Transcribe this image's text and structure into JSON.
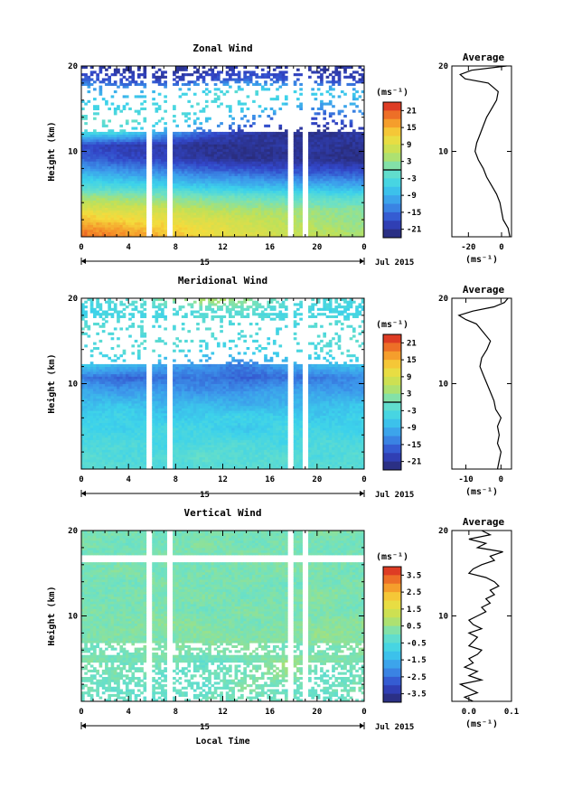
{
  "chart_data": [
    {
      "type": "heatmap",
      "title": "Zonal Wind",
      "xlabel": "",
      "ylabel": "Height (km)",
      "xlim": [
        0,
        24
      ],
      "ylim": [
        0,
        20
      ],
      "x_ticks": [
        "0",
        "4",
        "8",
        "12",
        "16",
        "20",
        "0"
      ],
      "y_ticks": [
        "10",
        "20"
      ],
      "date_ticks": [
        "15"
      ],
      "date_label": "Jul 2015",
      "colorbar": {
        "unit": "(ms⁻¹)",
        "ticks": [
          "21",
          "15",
          "9",
          "3",
          "-3",
          "-9",
          "-15",
          "-21"
        ],
        "min": -24,
        "max": 24,
        "line_value": 0
      },
      "average": {
        "title": "Average",
        "xlabel": "(ms⁻¹)",
        "x_ticks": [
          "-20",
          "0"
        ],
        "y_ticks": [
          "10",
          "20"
        ],
        "xlim": [
          -30,
          6
        ],
        "profile": [
          [
            0,
            5
          ],
          [
            1,
            4
          ],
          [
            2,
            1
          ],
          [
            3,
            0
          ],
          [
            4,
            -1
          ],
          [
            5,
            -3
          ],
          [
            6,
            -6
          ],
          [
            7,
            -9
          ],
          [
            8,
            -11
          ],
          [
            9,
            -14
          ],
          [
            10,
            -16
          ],
          [
            11,
            -15
          ],
          [
            12,
            -13
          ],
          [
            13,
            -11
          ],
          [
            14,
            -9
          ],
          [
            15,
            -6
          ],
          [
            16,
            -3
          ],
          [
            17,
            -2
          ],
          [
            18,
            -8
          ],
          [
            18.5,
            -22
          ],
          [
            19,
            -25
          ],
          [
            19.5,
            -18
          ],
          [
            20,
            3
          ]
        ]
      },
      "field": [
        [
          20,
          18,
          15,
          12,
          10,
          8,
          6,
          4
        ],
        [
          16,
          14,
          12,
          10,
          8,
          6,
          4,
          3
        ],
        [
          10,
          9,
          8,
          6,
          5,
          4,
          3,
          2
        ],
        [
          4,
          3,
          2,
          1,
          0,
          -1,
          -2,
          -2
        ],
        [
          -4,
          -5,
          -6,
          -8,
          -9,
          -10,
          -10,
          -11
        ],
        [
          -10,
          -12,
          -13,
          -15,
          -16,
          -17,
          -17,
          -18
        ],
        [
          -16,
          -18,
          -19,
          -21,
          -22,
          -22,
          -22,
          -23
        ],
        [
          -18,
          -20,
          -20,
          -22,
          -22,
          -21,
          -21,
          -22
        ],
        [
          -3,
          -4,
          -10,
          -16,
          -20,
          -22,
          -22,
          -20
        ],
        [
          -2,
          -1,
          -3,
          -6,
          -12,
          -16,
          -18,
          -15
        ],
        [
          -5,
          -6,
          -4,
          -3,
          -5,
          -8,
          -12,
          -10
        ],
        [
          -8,
          -10,
          -6,
          -4,
          -2,
          -4,
          -6,
          -8
        ],
        [
          -16,
          -18,
          -20,
          -18,
          -16,
          -17,
          -19,
          -20
        ],
        [
          -20,
          -22,
          -21,
          -22,
          -20,
          -21,
          -22,
          -20
        ]
      ]
    },
    {
      "type": "heatmap",
      "title": "Meridional Wind",
      "xlabel": "",
      "ylabel": "Height (km)",
      "xlim": [
        0,
        24
      ],
      "ylim": [
        0,
        20
      ],
      "x_ticks": [
        "0",
        "4",
        "8",
        "12",
        "16",
        "20",
        "0"
      ],
      "y_ticks": [
        "10",
        "20"
      ],
      "date_ticks": [
        "15"
      ],
      "date_label": "Jul 2015",
      "colorbar": {
        "unit": "(ms⁻¹)",
        "ticks": [
          "21",
          "15",
          "9",
          "3",
          "-3",
          "-9",
          "-15",
          "-21"
        ],
        "min": -24,
        "max": 24,
        "line_value": 0
      },
      "average": {
        "title": "Average",
        "xlabel": "(ms⁻¹)",
        "x_ticks": [
          "-10",
          "0"
        ],
        "y_ticks": [
          "10",
          "20"
        ],
        "xlim": [
          -14,
          3
        ],
        "profile": [
          [
            0,
            -1
          ],
          [
            1,
            -0.5
          ],
          [
            2,
            0
          ],
          [
            3,
            -1
          ],
          [
            4,
            -0.5
          ],
          [
            5,
            -1
          ],
          [
            6,
            0
          ],
          [
            7,
            -1.5
          ],
          [
            8,
            -2
          ],
          [
            9,
            -3
          ],
          [
            10,
            -4
          ],
          [
            11,
            -5
          ],
          [
            12,
            -6
          ],
          [
            13,
            -5.5
          ],
          [
            14,
            -4
          ],
          [
            15,
            -3
          ],
          [
            16,
            -5
          ],
          [
            17,
            -7
          ],
          [
            17.5,
            -10
          ],
          [
            18,
            -12
          ],
          [
            18.5,
            -8
          ],
          [
            19,
            -2
          ],
          [
            19.5,
            1
          ],
          [
            20,
            2
          ]
        ]
      },
      "field": [
        [
          -3,
          -2,
          -4,
          -3,
          -2,
          -3,
          -2,
          -3
        ],
        [
          -2,
          -4,
          -3,
          -1,
          -3,
          -2,
          -4,
          -2
        ],
        [
          -4,
          -3,
          -5,
          -4,
          -3,
          -5,
          -3,
          -4
        ],
        [
          -5,
          -6,
          -4,
          -5,
          -7,
          -4,
          -5,
          -6
        ],
        [
          -6,
          -5,
          -7,
          -6,
          -5,
          -6,
          -7,
          -5
        ],
        [
          -8,
          -7,
          -9,
          -8,
          -10,
          -9,
          -8,
          -7
        ],
        [
          -10,
          -12,
          -11,
          -13,
          -12,
          -10,
          -11,
          -12
        ],
        [
          -14,
          -16,
          -15,
          -14,
          -16,
          -15,
          -14,
          -13
        ],
        [
          -6,
          -8,
          -10,
          -12,
          -14,
          -10,
          -8,
          -6
        ],
        [
          -4,
          -2,
          -3,
          -5,
          -6,
          -4,
          -3,
          -2
        ],
        [
          -3,
          -4,
          -2,
          -3,
          -4,
          -5,
          -3,
          -2
        ],
        [
          -2,
          -3,
          -4,
          -2,
          -3,
          -4,
          -2,
          -3
        ],
        [
          -6,
          -4,
          -5,
          -3,
          -2,
          -4,
          -5,
          -6
        ],
        [
          -4,
          -2,
          2,
          6,
          4,
          -2,
          -3,
          -4
        ]
      ]
    },
    {
      "type": "heatmap",
      "title": "Vertical Wind",
      "xlabel": "Local Time",
      "ylabel": "Height (km)",
      "xlim": [
        0,
        24
      ],
      "ylim": [
        0,
        20
      ],
      "x_ticks": [
        "0",
        "4",
        "8",
        "12",
        "16",
        "20",
        "0"
      ],
      "y_ticks": [
        "10",
        "20"
      ],
      "date_ticks": [
        "15"
      ],
      "date_label": "Jul 2015",
      "colorbar": {
        "unit": "(ms⁻¹)",
        "ticks": [
          "3.5",
          "2.5",
          "1.5",
          "0.5",
          "-0.5",
          "-1.5",
          "-2.5",
          "-3.5"
        ],
        "min": -4,
        "max": 4,
        "line_value": null
      },
      "average": {
        "title": "Average",
        "xlabel": "(ms⁻¹)",
        "x_ticks": [
          "0.0",
          "0.1"
        ],
        "y_ticks": [
          "10",
          "20"
        ],
        "xlim": [
          -0.04,
          0.1
        ],
        "profile": [
          [
            0,
            0.01
          ],
          [
            0.5,
            -0.01
          ],
          [
            1,
            0.02
          ],
          [
            1.5,
            0.0
          ],
          [
            2,
            -0.02
          ],
          [
            2.5,
            0.03
          ],
          [
            3,
            0.0
          ],
          [
            3.5,
            0.02
          ],
          [
            4,
            -0.01
          ],
          [
            4.5,
            0.01
          ],
          [
            5,
            0.0
          ],
          [
            5.5,
            0.02
          ],
          [
            6,
            0.03
          ],
          [
            6.5,
            0.0
          ],
          [
            7,
            0.01
          ],
          [
            7.5,
            0.02
          ],
          [
            8,
            0.0
          ],
          [
            8.5,
            0.03
          ],
          [
            9,
            0.01
          ],
          [
            9.5,
            0.0
          ],
          [
            10,
            0.02
          ],
          [
            10.5,
            0.04
          ],
          [
            11,
            0.03
          ],
          [
            11.5,
            0.05
          ],
          [
            12,
            0.04
          ],
          [
            12.5,
            0.06
          ],
          [
            13,
            0.05
          ],
          [
            13.5,
            0.07
          ],
          [
            14,
            0.06
          ],
          [
            14.5,
            0.04
          ],
          [
            15,
            0.0
          ],
          [
            15.5,
            0.01
          ],
          [
            16,
            0.03
          ],
          [
            16.5,
            0.06
          ],
          [
            17,
            0.05
          ],
          [
            17.5,
            0.08
          ],
          [
            18,
            0.02
          ],
          [
            18.5,
            0.04
          ],
          [
            19,
            0.0
          ],
          [
            19.5,
            0.05
          ],
          [
            20,
            0.03
          ]
        ]
      },
      "field": [
        [
          -0.2,
          0.0,
          -0.4,
          0.2,
          -0.1,
          0.1,
          -0.3,
          0.0
        ],
        [
          0.1,
          -0.2,
          0.0,
          -0.3,
          0.3,
          -0.1,
          0.0,
          0.2
        ],
        [
          -0.1,
          0.2,
          -0.2,
          0.0,
          0.1,
          0.4,
          -0.2,
          0.0
        ],
        [
          0.3,
          0.0,
          0.2,
          -0.2,
          0.0,
          0.6,
          0.2,
          0.1
        ],
        [
          0.0,
          0.1,
          0.3,
          0.2,
          0.4,
          0.0,
          0.1,
          0.3
        ],
        [
          0.2,
          0.3,
          0.1,
          0.4,
          0.2,
          0.3,
          0.5,
          0.2
        ],
        [
          0.1,
          0.2,
          0.4,
          0.3,
          0.1,
          0.2,
          0.3,
          0.4
        ],
        [
          0.3,
          0.1,
          0.2,
          0.0,
          0.3,
          0.1,
          0.2,
          0.0
        ],
        [
          0.0,
          0.2,
          0.1,
          0.3,
          0.0,
          0.2,
          0.4,
          0.1
        ],
        [
          0.2,
          0.0,
          0.3,
          0.1,
          0.2,
          0.0,
          0.1,
          0.3
        ],
        [
          0.1,
          0.3,
          0.0,
          0.2,
          0.1,
          0.3,
          0.2,
          0.0
        ],
        [
          0.0,
          0.1,
          0.2,
          0.0,
          0.3,
          0.1,
          0.0,
          0.2
        ],
        [
          0.2,
          0.0,
          0.1,
          0.3,
          0.0,
          0.2,
          0.1,
          0.0
        ],
        [
          0.1,
          0.2,
          0.0,
          0.1,
          0.2,
          0.0,
          0.3,
          0.1
        ]
      ]
    }
  ]
}
